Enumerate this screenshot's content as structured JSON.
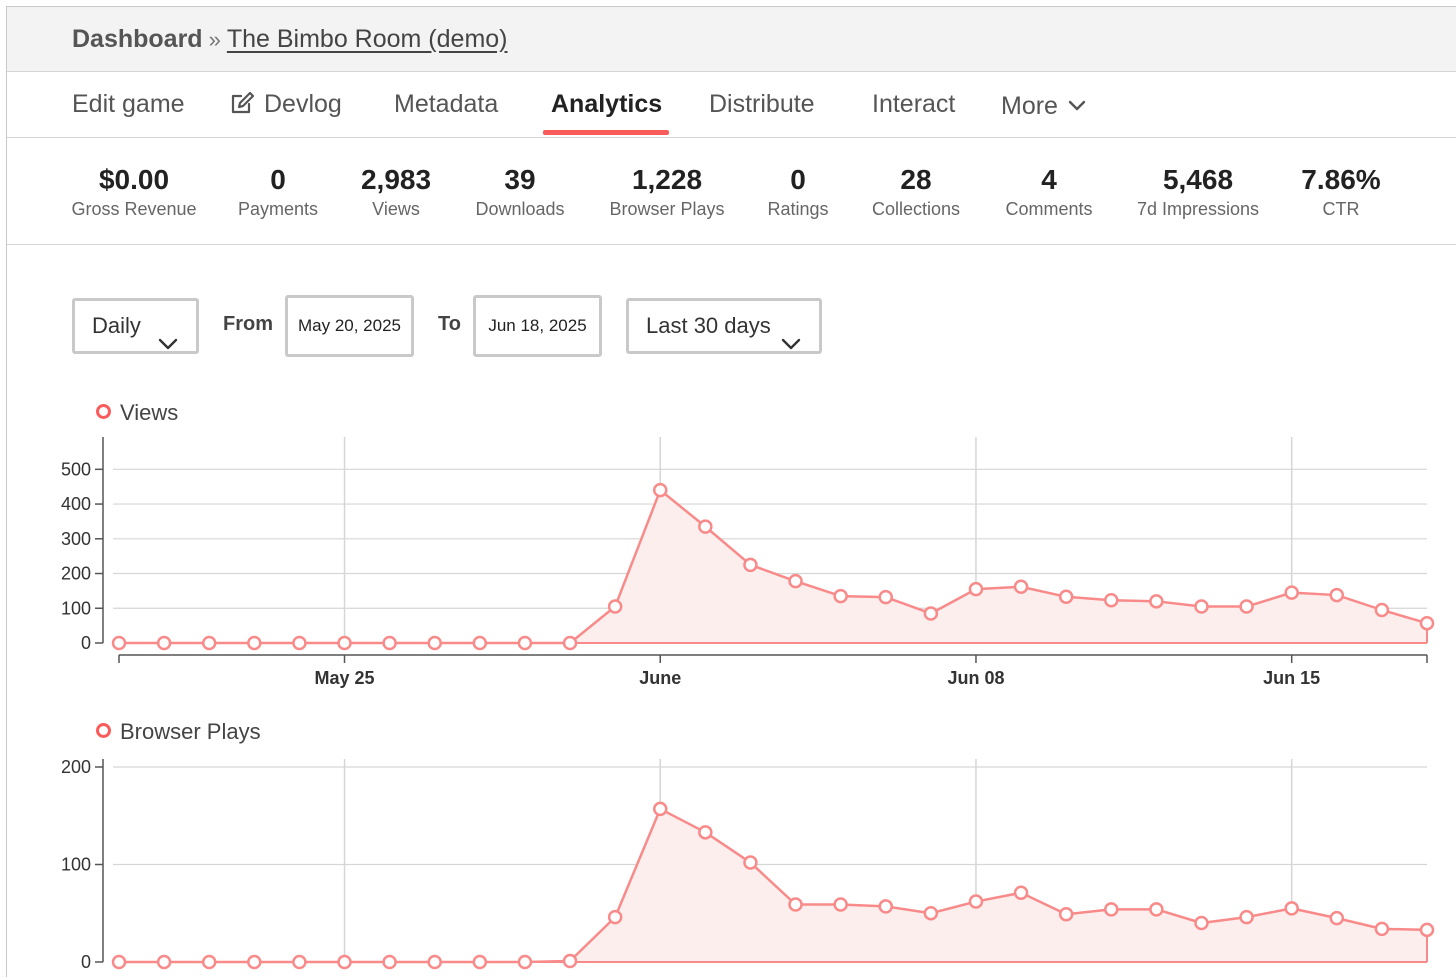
{
  "breadcrumb": {
    "root": "Dashboard",
    "separator": "»",
    "current": "The Bimbo Room (demo)"
  },
  "tabs": [
    {
      "label": "Edit game",
      "active": false
    },
    {
      "label": "Devlog",
      "active": false,
      "icon": "edit-icon"
    },
    {
      "label": "Metadata",
      "active": false
    },
    {
      "label": "Analytics",
      "active": true
    },
    {
      "label": "Distribute",
      "active": false
    },
    {
      "label": "Interact",
      "active": false
    },
    {
      "label": "More",
      "active": false,
      "icon": "chevron-down-icon"
    }
  ],
  "stats": [
    {
      "value": "$0.00",
      "label": "Gross Revenue"
    },
    {
      "value": "0",
      "label": "Payments"
    },
    {
      "value": "2,983",
      "label": "Views"
    },
    {
      "value": "39",
      "label": "Downloads"
    },
    {
      "value": "1,228",
      "label": "Browser Plays"
    },
    {
      "value": "0",
      "label": "Ratings"
    },
    {
      "value": "28",
      "label": "Collections"
    },
    {
      "value": "4",
      "label": "Comments"
    },
    {
      "value": "5,468",
      "label": "7d Impressions"
    },
    {
      "value": "7.86%",
      "label": "CTR"
    }
  ],
  "filters": {
    "interval": "Daily",
    "from_label": "From",
    "from_date": "May 20, 2025",
    "to_label": "To",
    "to_date": "Jun 18, 2025",
    "range": "Last 30 days"
  },
  "colors": {
    "accent": "#fa5c5c",
    "line": "#f98a8a",
    "fill": "#fdeeee",
    "grid": "#d6d6d6"
  },
  "chart_data": [
    {
      "type": "line",
      "title": "",
      "legend": "Views",
      "x": [
        "2025-05-20",
        "2025-05-21",
        "2025-05-22",
        "2025-05-23",
        "2025-05-24",
        "2025-05-25",
        "2025-05-26",
        "2025-05-27",
        "2025-05-28",
        "2025-05-29",
        "2025-05-30",
        "2025-05-31",
        "2025-06-01",
        "2025-06-02",
        "2025-06-03",
        "2025-06-04",
        "2025-06-05",
        "2025-06-06",
        "2025-06-07",
        "2025-06-08",
        "2025-06-09",
        "2025-06-10",
        "2025-06-11",
        "2025-06-12",
        "2025-06-13",
        "2025-06-14",
        "2025-06-15",
        "2025-06-16",
        "2025-06-17",
        "2025-06-18"
      ],
      "values": [
        0,
        0,
        0,
        0,
        0,
        0,
        0,
        0,
        0,
        0,
        0,
        105,
        440,
        335,
        225,
        178,
        135,
        132,
        85,
        155,
        162,
        133,
        123,
        120,
        105,
        105,
        145,
        138,
        95,
        57
      ],
      "x_ticks": [
        "May 25",
        "June",
        "Jun 08",
        "Jun 15"
      ],
      "y_ticks": [
        "0",
        "100",
        "200",
        "300",
        "400",
        "500"
      ],
      "ylim": [
        0,
        570
      ],
      "grid": true
    },
    {
      "type": "line",
      "title": "",
      "legend": "Browser Plays",
      "x": [
        "2025-05-20",
        "2025-05-21",
        "2025-05-22",
        "2025-05-23",
        "2025-05-24",
        "2025-05-25",
        "2025-05-26",
        "2025-05-27",
        "2025-05-28",
        "2025-05-29",
        "2025-05-30",
        "2025-05-31",
        "2025-06-01",
        "2025-06-02",
        "2025-06-03",
        "2025-06-04",
        "2025-06-05",
        "2025-06-06",
        "2025-06-07",
        "2025-06-08",
        "2025-06-09",
        "2025-06-10",
        "2025-06-11",
        "2025-06-12",
        "2025-06-13",
        "2025-06-14",
        "2025-06-15",
        "2025-06-16",
        "2025-06-17",
        "2025-06-18"
      ],
      "values": [
        0,
        0,
        0,
        0,
        0,
        0,
        0,
        0,
        0,
        0,
        1,
        46,
        157,
        133,
        102,
        59,
        59,
        57,
        50,
        62,
        71,
        49,
        54,
        54,
        40,
        46,
        55,
        45,
        34,
        33
      ],
      "y_ticks": [
        "0",
        "100",
        "200"
      ],
      "ylim": [
        0,
        200
      ],
      "grid": true
    }
  ]
}
